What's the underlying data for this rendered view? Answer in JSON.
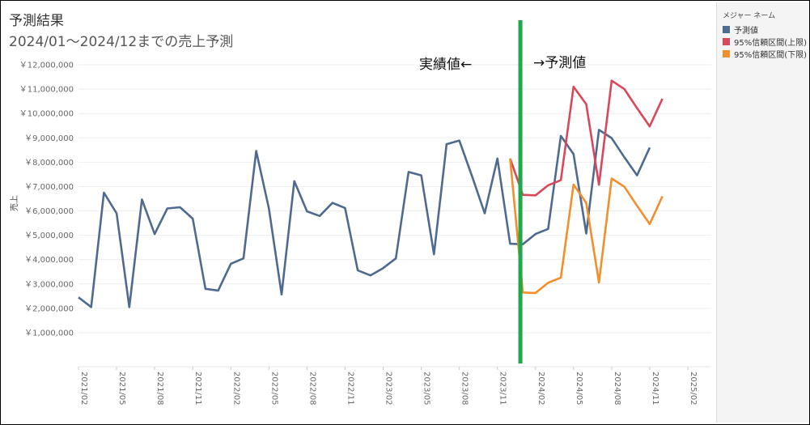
{
  "header": {
    "title": "予測結果",
    "subtitle": "2024/01～2024/12までの売上予測"
  },
  "legend": {
    "title": "メジャー ネーム",
    "items": [
      {
        "label": "予測値",
        "color": "#4e6b8f"
      },
      {
        "label": "95%信頼区間(上限)",
        "color": "#d9485a"
      },
      {
        "label": "95%信頼区間(下限)",
        "color": "#f28e2b"
      }
    ]
  },
  "annotations": {
    "actual": "実績値←",
    "forecast": "→予測値",
    "divider_color": "#1fa94a"
  },
  "chart_data": {
    "type": "line",
    "ylabel": "売上",
    "ylim": [
      0,
      12500000
    ],
    "y_ticks": [
      1000000,
      2000000,
      3000000,
      4000000,
      5000000,
      6000000,
      7000000,
      8000000,
      9000000,
      10000000,
      11000000,
      12000000
    ],
    "y_tick_labels": [
      "￥1,000,000",
      "￥2,000,000",
      "￥3,000,000",
      "￥4,000,000",
      "￥5,000,000",
      "￥6,000,000",
      "￥7,000,000",
      "￥8,000,000",
      "￥9,000,000",
      "￥10,000,000",
      "￥11,000,000",
      "￥12,000,000"
    ],
    "x_range": [
      "2021/02",
      "2025/02"
    ],
    "x_ticks": [
      "2021/02",
      "2021/05",
      "2021/08",
      "2021/11",
      "2022/02",
      "2022/05",
      "2022/08",
      "2022/11",
      "2023/02",
      "2023/05",
      "2023/08",
      "2023/11",
      "2024/02",
      "2024/05",
      "2024/08",
      "2024/11",
      "2025/02"
    ],
    "divider_at": "2024/01",
    "series": [
      {
        "name": "予測値",
        "color": "#4e6b8f",
        "x": [
          "2021/02",
          "2021/03",
          "2021/04",
          "2021/05",
          "2021/06",
          "2021/07",
          "2021/08",
          "2021/09",
          "2021/10",
          "2021/11",
          "2021/12",
          "2022/01",
          "2022/02",
          "2022/03",
          "2022/04",
          "2022/05",
          "2022/06",
          "2022/07",
          "2022/08",
          "2022/09",
          "2022/10",
          "2022/11",
          "2022/12",
          "2023/01",
          "2023/02",
          "2023/03",
          "2023/04",
          "2023/05",
          "2023/06",
          "2023/07",
          "2023/08",
          "2023/09",
          "2023/10",
          "2023/11",
          "2023/12",
          "2024/01",
          "2024/02",
          "2024/03",
          "2024/04",
          "2024/05",
          "2024/06",
          "2024/07",
          "2024/08",
          "2024/09",
          "2024/10",
          "2024/11",
          "2024/12"
        ],
        "values": [
          2450000,
          2050000,
          6750000,
          5900000,
          2050000,
          6470000,
          5050000,
          6100000,
          6150000,
          5680000,
          2800000,
          2730000,
          3830000,
          4050000,
          8460000,
          6100000,
          2570000,
          7220000,
          5980000,
          5790000,
          6330000,
          6120000,
          3560000,
          3350000,
          3650000,
          4050000,
          7600000,
          7460000,
          4220000,
          8740000,
          8890000,
          7430000,
          5900000,
          8150000,
          4650000,
          4630000,
          5050000,
          5260000,
          9080000,
          8330000,
          5070000,
          9330000,
          8990000,
          8200000,
          7460000,
          8600000,
          null
        ]
      },
      {
        "name": "95%信頼区間(上限)",
        "color": "#d9485a",
        "x": [
          "2023/12",
          "2024/01",
          "2024/02",
          "2024/03",
          "2024/04",
          "2024/05",
          "2024/06",
          "2024/07",
          "2024/08",
          "2024/09",
          "2024/10",
          "2024/11",
          "2024/12"
        ],
        "values": [
          8150000,
          6660000,
          6640000,
          7050000,
          7260000,
          11100000,
          10380000,
          7070000,
          11350000,
          11000000,
          10220000,
          9470000,
          10610000
        ]
      },
      {
        "name": "95%信頼区間(下限)",
        "color": "#f28e2b",
        "x": [
          "2023/12",
          "2024/01",
          "2024/02",
          "2024/03",
          "2024/04",
          "2024/05",
          "2024/06",
          "2024/07",
          "2024/08",
          "2024/09",
          "2024/10",
          "2024/11",
          "2024/12"
        ],
        "values": [
          8150000,
          2650000,
          2630000,
          3050000,
          3260000,
          7080000,
          6330000,
          3060000,
          7330000,
          6990000,
          6210000,
          5460000,
          6600000
        ]
      }
    ]
  }
}
